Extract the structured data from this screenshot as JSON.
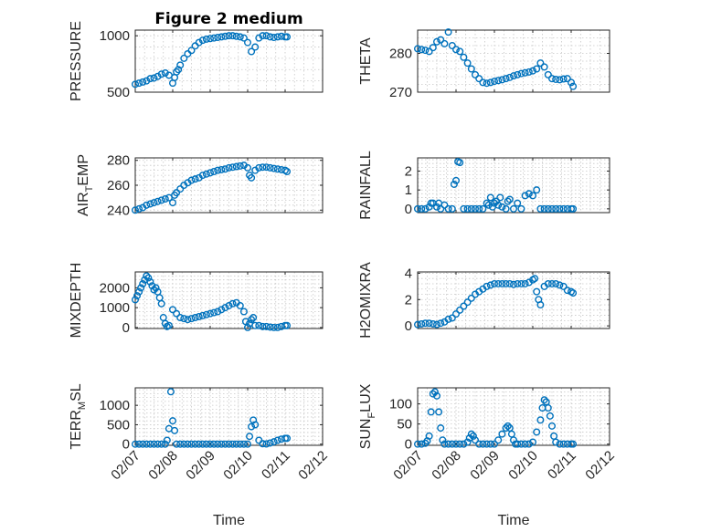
{
  "figure_title": "Figure 2 medium",
  "colors": {
    "marker": "#0072BD",
    "axis": "#262626",
    "grid": "#c8c8c8"
  },
  "chart_data": [
    {
      "type": "scatter",
      "id": "pressure",
      "title": "Figure 2 medium",
      "ylabel": "PRESSURE",
      "xlabel": "",
      "xlim": [
        0,
        5
      ],
      "ylim": [
        500,
        1050
      ],
      "yticks": [
        500,
        1000
      ],
      "ytick_labels": [
        "500",
        "1000"
      ],
      "xticks": [
        0,
        1,
        2,
        3,
        4,
        5
      ],
      "xtick_labels": [],
      "grid": true,
      "series": [
        {
          "x": [
            0.0,
            0.1,
            0.2,
            0.3,
            0.4,
            0.5,
            0.6,
            0.7,
            0.8,
            0.9,
            1.0,
            1.05,
            1.1,
            1.15,
            1.2,
            1.3,
            1.4,
            1.5,
            1.6,
            1.7,
            1.8,
            1.9,
            2.0,
            2.1,
            2.2,
            2.3,
            2.4,
            2.5,
            2.6,
            2.7,
            2.8,
            2.9,
            3.0,
            3.1,
            3.2,
            3.3,
            3.4,
            3.5,
            3.6,
            3.7,
            3.8,
            3.9,
            4.0,
            4.05
          ],
          "y": [
            570,
            580,
            590,
            600,
            620,
            625,
            640,
            660,
            670,
            650,
            580,
            630,
            680,
            700,
            740,
            800,
            840,
            870,
            910,
            940,
            960,
            970,
            975,
            980,
            985,
            990,
            995,
            1000,
            1000,
            995,
            990,
            980,
            940,
            860,
            900,
            980,
            1000,
            1000,
            990,
            985,
            990,
            995,
            990,
            990
          ]
        }
      ]
    },
    {
      "type": "scatter",
      "id": "theta",
      "ylabel": "THETA",
      "xlabel": "",
      "xlim": [
        0,
        5
      ],
      "ylim": [
        270,
        286
      ],
      "yticks": [
        270,
        280
      ],
      "ytick_labels": [
        "270",
        "280"
      ],
      "xticks": [
        0,
        1,
        2,
        3,
        4,
        5
      ],
      "xtick_labels": [],
      "grid": true,
      "series": [
        {
          "x": [
            0.0,
            0.1,
            0.2,
            0.3,
            0.4,
            0.5,
            0.6,
            0.7,
            0.8,
            0.9,
            1.0,
            1.1,
            1.2,
            1.3,
            1.4,
            1.5,
            1.6,
            1.7,
            1.8,
            1.9,
            2.0,
            2.1,
            2.2,
            2.3,
            2.4,
            2.5,
            2.6,
            2.7,
            2.8,
            2.9,
            3.0,
            3.1,
            3.2,
            3.3,
            3.4,
            3.5,
            3.6,
            3.7,
            3.8,
            3.9,
            4.0,
            4.05
          ],
          "y": [
            281.2,
            281.0,
            280.8,
            280.5,
            281.5,
            283.0,
            283.5,
            282.5,
            285.5,
            282.0,
            281.0,
            280.5,
            279.0,
            277.5,
            276.0,
            274.5,
            273.5,
            272.5,
            272.3,
            272.5,
            272.8,
            273.0,
            273.2,
            273.5,
            273.8,
            274.2,
            274.5,
            274.8,
            275.0,
            275.2,
            275.5,
            276.0,
            277.5,
            276.5,
            274.5,
            273.5,
            273.3,
            273.2,
            273.4,
            273.5,
            272.5,
            271.5
          ]
        }
      ]
    },
    {
      "type": "scatter",
      "id": "air-temp",
      "ylabel": "AIR_TEMP",
      "xlabel": "",
      "xlim": [
        0,
        5
      ],
      "ylim": [
        238,
        282
      ],
      "yticks": [
        240,
        260,
        280
      ],
      "ytick_labels": [
        "240",
        "260",
        "280"
      ],
      "xticks": [
        0,
        1,
        2,
        3,
        4,
        5
      ],
      "xtick_labels": [],
      "grid": true,
      "series": [
        {
          "x": [
            0.0,
            0.1,
            0.2,
            0.3,
            0.4,
            0.5,
            0.6,
            0.7,
            0.8,
            0.9,
            1.0,
            1.05,
            1.1,
            1.2,
            1.3,
            1.4,
            1.5,
            1.6,
            1.7,
            1.8,
            1.9,
            2.0,
            2.1,
            2.2,
            2.3,
            2.4,
            2.5,
            2.6,
            2.7,
            2.8,
            2.9,
            3.0,
            3.05,
            3.1,
            3.2,
            3.3,
            3.4,
            3.5,
            3.6,
            3.7,
            3.8,
            3.9,
            4.0,
            4.05
          ],
          "y": [
            240,
            241,
            242,
            244,
            245,
            246,
            247,
            248,
            249,
            250,
            246,
            252,
            254,
            257,
            260,
            262,
            264,
            265,
            266,
            268,
            269,
            270,
            271,
            272,
            272.5,
            273,
            274,
            274.5,
            275,
            275.5,
            276,
            274,
            268,
            266,
            272,
            274,
            274.5,
            274.5,
            274,
            273.5,
            273,
            272.5,
            272,
            271
          ]
        }
      ]
    },
    {
      "type": "scatter",
      "id": "rainfall",
      "ylabel": "RAINFALL",
      "xlabel": "",
      "xlim": [
        0,
        5
      ],
      "ylim": [
        -0.2,
        2.7
      ],
      "yticks": [
        0,
        1,
        2
      ],
      "ytick_labels": [
        "0",
        "1",
        "2"
      ],
      "xticks": [
        0,
        1,
        2,
        3,
        4,
        5
      ],
      "xtick_labels": [],
      "grid": true,
      "series": [
        {
          "x": [
            0.0,
            0.1,
            0.2,
            0.3,
            0.35,
            0.4,
            0.5,
            0.55,
            0.6,
            0.7,
            0.8,
            0.9,
            0.95,
            1.0,
            1.05,
            1.1,
            1.2,
            1.3,
            1.4,
            1.5,
            1.6,
            1.7,
            1.8,
            1.85,
            1.9,
            1.95,
            2.0,
            2.05,
            2.1,
            2.15,
            2.2,
            2.3,
            2.35,
            2.4,
            2.5,
            2.6,
            2.7,
            2.8,
            2.9,
            3.0,
            3.1,
            3.2,
            3.3,
            3.4,
            3.5,
            3.6,
            3.7,
            3.8,
            3.9,
            4.0,
            4.05
          ],
          "y": [
            0,
            0,
            0,
            0.1,
            0.3,
            0.3,
            0.1,
            0.3,
            0,
            0.2,
            0,
            0,
            1.3,
            1.5,
            2.5,
            2.45,
            0,
            0,
            0,
            0,
            0,
            0,
            0.3,
            0.2,
            0.6,
            0.1,
            0.3,
            0.4,
            0.2,
            0.6,
            0.1,
            0,
            0.4,
            0.5,
            0,
            0.3,
            0,
            0.7,
            0.8,
            0.7,
            1.0,
            0,
            0,
            0,
            0,
            0,
            0,
            0,
            0,
            0,
            0
          ]
        }
      ]
    },
    {
      "type": "scatter",
      "id": "mixdepth",
      "ylabel": "MIXDEPTH",
      "xlabel": "",
      "xlim": [
        0,
        5
      ],
      "ylim": [
        -50,
        2800
      ],
      "yticks": [
        0,
        1000,
        2000
      ],
      "ytick_labels": [
        "0",
        "1000",
        "2000"
      ],
      "xticks": [
        0,
        1,
        2,
        3,
        4,
        5
      ],
      "xtick_labels": [],
      "grid": true,
      "series": [
        {
          "x": [
            0.0,
            0.05,
            0.1,
            0.15,
            0.2,
            0.25,
            0.3,
            0.35,
            0.4,
            0.45,
            0.5,
            0.55,
            0.6,
            0.65,
            0.7,
            0.75,
            0.8,
            0.85,
            0.9,
            1.0,
            1.1,
            1.2,
            1.3,
            1.4,
            1.5,
            1.6,
            1.7,
            1.8,
            1.9,
            2.0,
            2.1,
            2.2,
            2.3,
            2.4,
            2.5,
            2.6,
            2.7,
            2.8,
            2.9,
            2.95,
            3.0,
            3.05,
            3.1,
            3.15,
            3.2,
            3.3,
            3.4,
            3.5,
            3.6,
            3.7,
            3.8,
            3.9,
            4.0,
            4.05
          ],
          "y": [
            1400,
            1600,
            1800,
            2000,
            2200,
            2400,
            2600,
            2500,
            2300,
            2100,
            1900,
            2000,
            1800,
            1500,
            1200,
            500,
            200,
            50,
            100,
            900,
            700,
            500,
            450,
            400,
            450,
            500,
            550,
            600,
            650,
            700,
            750,
            800,
            900,
            1000,
            1100,
            1200,
            1250,
            1100,
            800,
            300,
            0,
            200,
            400,
            500,
            100,
            100,
            50,
            50,
            20,
            0,
            0,
            50,
            100,
            100
          ]
        }
      ]
    },
    {
      "type": "scatter",
      "id": "h2omixra",
      "ylabel": "H2OMIXRA",
      "xlabel": "",
      "xlim": [
        0,
        5
      ],
      "ylim": [
        -0.2,
        4.1
      ],
      "yticks": [
        0,
        2,
        4
      ],
      "ytick_labels": [
        "0",
        "2",
        "4"
      ],
      "xticks": [
        0,
        1,
        2,
        3,
        4,
        5
      ],
      "xtick_labels": [],
      "grid": true,
      "series": [
        {
          "x": [
            0.0,
            0.1,
            0.2,
            0.3,
            0.4,
            0.5,
            0.6,
            0.7,
            0.8,
            0.9,
            1.0,
            1.1,
            1.2,
            1.3,
            1.4,
            1.5,
            1.6,
            1.7,
            1.8,
            1.9,
            2.0,
            2.1,
            2.2,
            2.3,
            2.4,
            2.5,
            2.6,
            2.7,
            2.8,
            2.9,
            3.0,
            3.05,
            3.1,
            3.15,
            3.2,
            3.3,
            3.4,
            3.5,
            3.6,
            3.7,
            3.8,
            3.9,
            4.0,
            4.05
          ],
          "y": [
            0.1,
            0.15,
            0.2,
            0.2,
            0.15,
            0.1,
            0.2,
            0.3,
            0.5,
            0.6,
            0.9,
            1.2,
            1.5,
            1.8,
            2.1,
            2.4,
            2.6,
            2.8,
            3.0,
            3.1,
            3.2,
            3.2,
            3.2,
            3.2,
            3.2,
            3.15,
            3.2,
            3.2,
            3.2,
            3.3,
            3.5,
            3.6,
            2.6,
            2.0,
            1.6,
            3.0,
            3.2,
            3.2,
            3.2,
            3.1,
            3.0,
            2.7,
            2.6,
            2.5
          ]
        }
      ]
    },
    {
      "type": "scatter",
      "id": "terr-msl",
      "ylabel": "TERR_MSL",
      "xlabel": "Time",
      "xlim": [
        0,
        5
      ],
      "ylim": [
        -30,
        1450
      ],
      "yticks": [
        0,
        500,
        1000
      ],
      "ytick_labels": [
        "0",
        "500",
        "1000"
      ],
      "xticks": [
        0,
        1,
        2,
        3,
        4,
        5
      ],
      "xtick_labels": [
        "02/07",
        "02/08",
        "02/09",
        "02/10",
        "02/11",
        "02/12"
      ],
      "grid": true,
      "series": [
        {
          "x": [
            0.0,
            0.1,
            0.2,
            0.3,
            0.4,
            0.5,
            0.6,
            0.7,
            0.8,
            0.85,
            0.9,
            0.95,
            1.0,
            1.05,
            1.1,
            1.2,
            1.3,
            1.4,
            1.5,
            1.6,
            1.7,
            1.8,
            1.9,
            2.0,
            2.1,
            2.2,
            2.3,
            2.4,
            2.5,
            2.6,
            2.7,
            2.8,
            2.9,
            3.0,
            3.05,
            3.1,
            3.15,
            3.2,
            3.3,
            3.4,
            3.5,
            3.6,
            3.7,
            3.8,
            3.9,
            4.0,
            4.05
          ],
          "y": [
            0,
            0,
            0,
            0,
            0,
            0,
            0,
            0,
            0,
            100,
            400,
            1350,
            600,
            350,
            0,
            0,
            0,
            0,
            0,
            0,
            0,
            0,
            0,
            0,
            0,
            0,
            0,
            0,
            0,
            0,
            0,
            0,
            0,
            0,
            200,
            450,
            620,
            500,
            100,
            10,
            5,
            30,
            60,
            100,
            130,
            150,
            150
          ]
        }
      ]
    },
    {
      "type": "scatter",
      "id": "sun-flux",
      "ylabel": "SUN_FLUX",
      "xlabel": "Time",
      "xlim": [
        0,
        5
      ],
      "ylim": [
        -3,
        140
      ],
      "yticks": [
        0,
        50,
        100
      ],
      "ytick_labels": [
        "0",
        "50",
        "100"
      ],
      "xticks": [
        0,
        1,
        2,
        3,
        4,
        5
      ],
      "xtick_labels": [
        "02/07",
        "02/08",
        "02/09",
        "02/10",
        "02/11",
        "02/12"
      ],
      "grid": true,
      "series": [
        {
          "x": [
            0.0,
            0.1,
            0.2,
            0.25,
            0.3,
            0.35,
            0.4,
            0.45,
            0.5,
            0.55,
            0.6,
            0.65,
            0.7,
            0.8,
            0.9,
            1.0,
            1.1,
            1.2,
            1.3,
            1.35,
            1.4,
            1.45,
            1.5,
            1.6,
            1.7,
            1.8,
            1.9,
            2.0,
            2.1,
            2.2,
            2.3,
            2.35,
            2.4,
            2.45,
            2.5,
            2.55,
            2.6,
            2.7,
            2.8,
            2.9,
            3.0,
            3.1,
            3.2,
            3.25,
            3.3,
            3.35,
            3.4,
            3.45,
            3.5,
            3.55,
            3.6,
            3.7,
            3.8,
            3.9,
            4.0,
            4.05
          ],
          "y": [
            0,
            0,
            2,
            8,
            20,
            80,
            125,
            130,
            120,
            80,
            40,
            10,
            0,
            0,
            0,
            0,
            0,
            0,
            5,
            15,
            25,
            20,
            10,
            0,
            0,
            0,
            0,
            0,
            10,
            25,
            40,
            45,
            40,
            25,
            10,
            0,
            0,
            0,
            0,
            0,
            5,
            30,
            60,
            90,
            110,
            105,
            90,
            70,
            45,
            20,
            5,
            0,
            0,
            0,
            0,
            0
          ]
        }
      ]
    }
  ]
}
